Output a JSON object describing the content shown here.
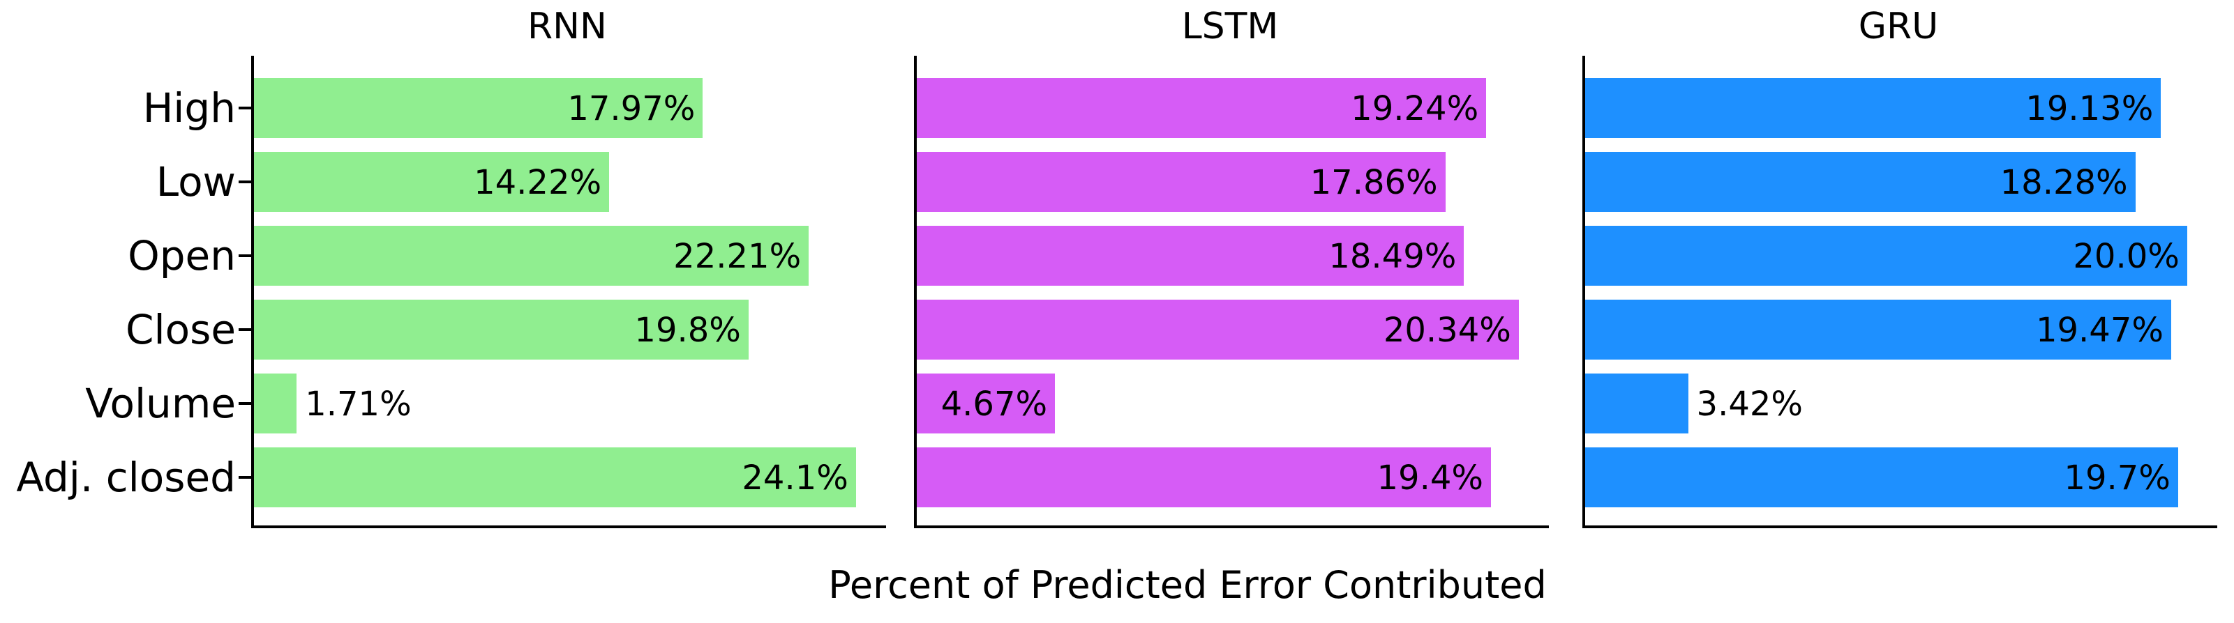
{
  "xlabel": "Percent of Predicted Error Contributed",
  "categories": [
    "High",
    "Low",
    "Open",
    "Close",
    "Volume",
    "Adj. closed"
  ],
  "chart_data": [
    {
      "type": "bar",
      "orientation": "horizontal",
      "title": "RNN",
      "color": "#90EE90",
      "categories": [
        "High",
        "Low",
        "Open",
        "Close",
        "Volume",
        "Adj. closed"
      ],
      "values": [
        17.97,
        14.22,
        22.21,
        19.8,
        1.71,
        24.1
      ],
      "value_labels": [
        "17.97%",
        "14.22%",
        "22.21%",
        "19.8%",
        "1.71%",
        "24.1%"
      ],
      "xlim": [
        0,
        25.305
      ],
      "grid": false,
      "legend": "none"
    },
    {
      "type": "bar",
      "orientation": "horizontal",
      "title": "LSTM",
      "color": "#D65CF6",
      "categories": [
        "High",
        "Low",
        "Open",
        "Close",
        "Volume",
        "Adj. closed"
      ],
      "values": [
        19.24,
        17.86,
        18.49,
        20.34,
        4.67,
        19.4
      ],
      "value_labels": [
        "19.24%",
        "17.86%",
        "18.49%",
        "20.34%",
        "4.67%",
        "19.4%"
      ],
      "xlim": [
        0,
        21.357
      ],
      "grid": false,
      "legend": "none"
    },
    {
      "type": "bar",
      "orientation": "horizontal",
      "title": "GRU",
      "color": "#1E90FF",
      "categories": [
        "High",
        "Low",
        "Open",
        "Close",
        "Volume",
        "Adj. closed"
      ],
      "values": [
        19.13,
        18.28,
        20.0,
        19.47,
        3.42,
        19.7
      ],
      "value_labels": [
        "19.13%",
        "18.28%",
        "20.0%",
        "19.47%",
        "3.42%",
        "19.7%"
      ],
      "xlim": [
        0,
        21.0
      ],
      "grid": false,
      "legend": "none"
    }
  ],
  "axis_color": "#000000",
  "text_color": "#000000"
}
